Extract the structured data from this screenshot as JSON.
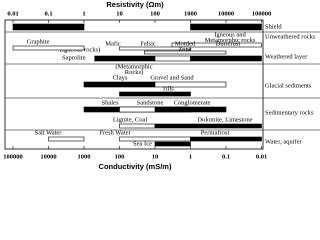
{
  "chart_data": {
    "type": "range",
    "title": "Resistivity (Ωm)",
    "x2_title": "Conductivity (mS/m)",
    "log_x": true,
    "xlim": [
      0.01,
      100000
    ],
    "xticks": [
      0.01,
      0.1,
      1,
      10,
      100,
      1000,
      10000,
      100000
    ],
    "x2lim": [
      100000,
      0.01
    ],
    "x2ticks": [
      100000,
      10000,
      1000,
      100,
      10,
      1,
      0.1,
      0.01
    ],
    "groups": [
      "Shield",
      "Unweathered rocks",
      "Weathered layer",
      "Glacial sediments",
      "Sedimentary rocks",
      "Water, aquifer"
    ],
    "annotations": [
      [
        "(Igneous rocks)"
      ],
      [
        "(Metamorphic",
        "Rocks)"
      ]
    ],
    "bars": [
      {
        "label": [
          "Massive Sulphides"
        ],
        "low": 0.01,
        "high": 1,
        "color": "#000000"
      },
      {
        "low": 1000,
        "high": 100000,
        "color": "#000000"
      },
      {
        "label": [
          "Igneous and",
          "Metamorphic rocks"
        ],
        "low": 300,
        "high": 100000,
        "color": "#ffffff"
      },
      {
        "label": [
          "Graphite"
        ],
        "low": 0.01,
        "high": 1,
        "color": "#ffffff"
      },
      {
        "label": [
          "Mafic"
        ],
        "low": 10,
        "high": 1000,
        "color": "#ffffff"
      },
      {
        "label": [
          "Felsic"
        ],
        "low": 50,
        "high": 10000,
        "color": "#ffffff"
      },
      {
        "label": [
          "Saprolite"
        ],
        "low": 2,
        "high": 100,
        "color": "#000000"
      },
      {
        "label": [
          "Mottled",
          "Zone"
        ],
        "low": 100,
        "high": 1000,
        "color": "#ffffff"
      },
      {
        "label": [
          "Duricrust"
        ],
        "low": 1000,
        "high": 100000,
        "color": "#000000"
      },
      {
        "label": [
          "Clays"
        ],
        "low": 1,
        "high": 100,
        "color": "#000000"
      },
      {
        "label": [
          "Gravel and Sand"
        ],
        "low": 100,
        "high": 10000,
        "color": "#ffffff"
      },
      {
        "label": [
          "Tills"
        ],
        "low": 10,
        "high": 1000,
        "color": "#000000"
      },
      {
        "label": [
          "Shales"
        ],
        "low": 1,
        "high": 100,
        "color": "#000000"
      },
      {
        "label": [
          "Sandstone"
        ],
        "low": 10,
        "high": 1000,
        "color": "#ffffff"
      },
      {
        "label": [
          "Conglomerate"
        ],
        "low": 100,
        "high": 10000,
        "color": "#000000"
      },
      {
        "label": [
          "Lignite, Coal"
        ],
        "low": 10,
        "high": 100,
        "color": "#ffffff"
      },
      {
        "label": [
          "Dolomite, Limestone"
        ],
        "low": 100,
        "high": 100000,
        "color": "#000000"
      },
      {
        "label": [
          "Salt Water"
        ],
        "low": 0.1,
        "high": 1,
        "color": "#ffffff"
      },
      {
        "label": [
          "Fresh Water"
        ],
        "low": 10,
        "high": 1000,
        "color": "#ffffff"
      },
      {
        "label": [
          "Sea Ice"
        ],
        "low": 100,
        "high": 1000,
        "color": "#000000"
      },
      {
        "label": [
          "Permafrost"
        ],
        "low": 1000,
        "high": 100000,
        "color": "#000000"
      }
    ]
  }
}
